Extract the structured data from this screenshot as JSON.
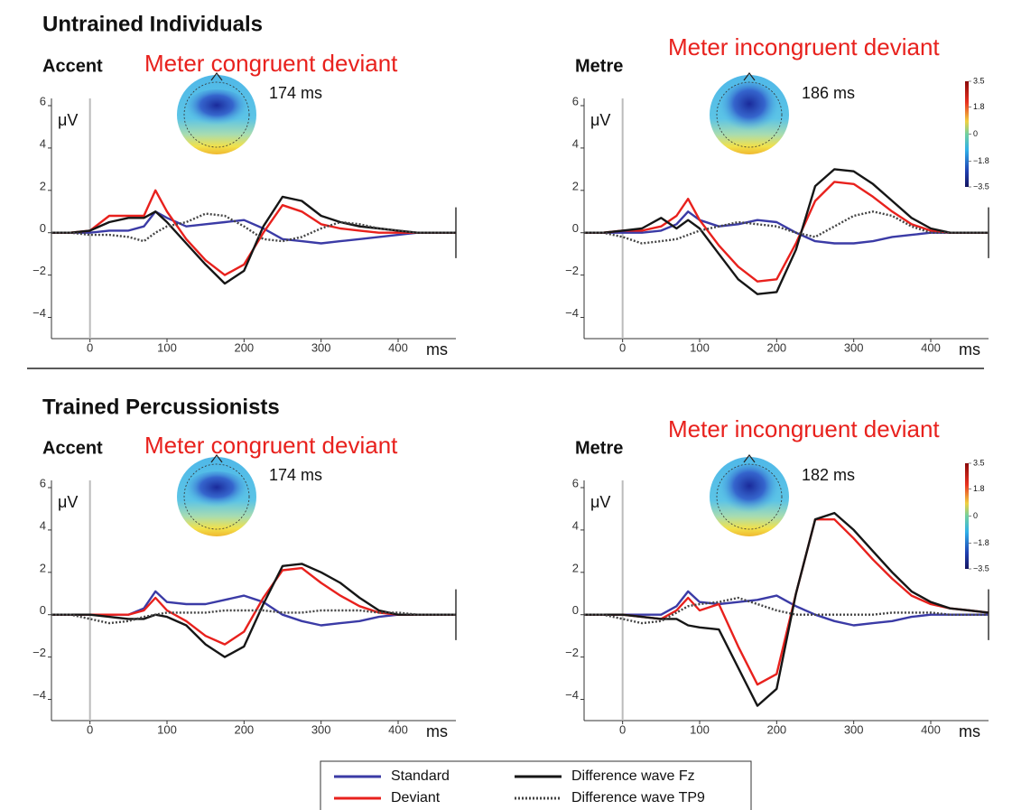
{
  "sections": [
    {
      "title": "Untrained Individuals"
    },
    {
      "title": "Trained Percussionists"
    }
  ],
  "chart_data": [
    {
      "type": "line",
      "label": "Accent",
      "title": "Meter congruent deviant",
      "annotation": "174 ms",
      "ylabel": "μV",
      "xlabel": "ms",
      "x": [
        -50,
        -25,
        0,
        25,
        50,
        70,
        85,
        100,
        125,
        150,
        175,
        200,
        225,
        250,
        275,
        300,
        325,
        350,
        375,
        400,
        425,
        450,
        475
      ],
      "xlim": [
        -50,
        475
      ],
      "ylim": [
        -5,
        6
      ],
      "xticks": [
        0,
        100,
        200,
        300,
        400
      ],
      "yticks": [
        {
          "value": -4,
          "label": "−4"
        },
        {
          "value": -2,
          "label": "−2"
        },
        0,
        2,
        4,
        6
      ],
      "series": [
        {
          "name": "Standard",
          "color": "#3b3ba6",
          "linestyle": "solid",
          "values": [
            0,
            0,
            0,
            0.1,
            0.1,
            0.3,
            1.0,
            0.7,
            0.3,
            0.4,
            0.5,
            0.6,
            0.2,
            -0.3,
            -0.4,
            -0.5,
            -0.4,
            -0.3,
            -0.2,
            -0.1,
            0,
            0,
            0
          ]
        },
        {
          "name": "Deviant",
          "color": "#e8211d",
          "linestyle": "solid",
          "values": [
            0,
            0,
            0.1,
            0.8,
            0.8,
            0.8,
            2.0,
            1.0,
            -0.3,
            -1.3,
            -2.0,
            -1.5,
            0,
            1.3,
            1.0,
            0.4,
            0.2,
            0.1,
            0,
            0,
            0,
            0,
            0
          ]
        },
        {
          "name": "Difference wave Fz",
          "color": "#161616",
          "linestyle": "solid",
          "values": [
            0,
            0,
            0.1,
            0.5,
            0.7,
            0.7,
            1.0,
            0.5,
            -0.5,
            -1.5,
            -2.4,
            -1.8,
            0.3,
            1.7,
            1.5,
            0.8,
            0.5,
            0.3,
            0.2,
            0.1,
            0,
            0,
            0
          ]
        },
        {
          "name": "Difference wave TP9",
          "color": "#444444",
          "linestyle": "dotted",
          "values": [
            0,
            0,
            -0.1,
            -0.1,
            -0.2,
            -0.4,
            0,
            0.3,
            0.5,
            0.9,
            0.8,
            0.3,
            -0.3,
            -0.4,
            -0.2,
            0.2,
            0.5,
            0.4,
            0.2,
            0.1,
            0,
            0,
            0
          ]
        }
      ]
    },
    {
      "type": "line",
      "label": "Metre",
      "title": "Meter incongruent deviant",
      "annotation": "186 ms",
      "ylabel": "μV",
      "xlabel": "ms",
      "x": [
        -50,
        -25,
        0,
        25,
        50,
        70,
        85,
        100,
        125,
        150,
        175,
        200,
        225,
        250,
        275,
        300,
        325,
        350,
        375,
        400,
        425,
        450,
        475
      ],
      "xlim": [
        -50,
        475
      ],
      "ylim": [
        -5,
        6
      ],
      "xticks": [
        0,
        100,
        200,
        300,
        400
      ],
      "yticks": [
        {
          "value": -4,
          "label": "−4"
        },
        {
          "value": -2,
          "label": "−2"
        },
        0,
        2,
        4,
        6
      ],
      "colorbar": {
        "lim": [
          -3.5,
          3.5
        ],
        "ticks": [
          3.5,
          1.8,
          0,
          {
            "value": -1.8,
            "label": "−1.8"
          },
          {
            "value": -3.5,
            "label": "−3.5"
          }
        ]
      },
      "series": [
        {
          "name": "Standard",
          "color": "#3b3ba6",
          "linestyle": "solid",
          "values": [
            0,
            0,
            0,
            0,
            0.1,
            0.4,
            1.0,
            0.6,
            0.3,
            0.4,
            0.6,
            0.5,
            0,
            -0.4,
            -0.5,
            -0.5,
            -0.4,
            -0.2,
            -0.1,
            0,
            0,
            0,
            0
          ]
        },
        {
          "name": "Deviant",
          "color": "#e8211d",
          "linestyle": "solid",
          "values": [
            0,
            0,
            0.1,
            0.1,
            0.3,
            0.8,
            1.6,
            0.6,
            -0.6,
            -1.6,
            -2.3,
            -2.2,
            -0.5,
            1.5,
            2.4,
            2.3,
            1.7,
            1.0,
            0.4,
            0.1,
            0,
            0,
            0
          ]
        },
        {
          "name": "Difference wave Fz",
          "color": "#161616",
          "linestyle": "solid",
          "values": [
            0,
            0,
            0.1,
            0.2,
            0.7,
            0.2,
            0.6,
            0.2,
            -1.0,
            -2.2,
            -2.9,
            -2.8,
            -0.8,
            2.2,
            3.0,
            2.9,
            2.3,
            1.5,
            0.7,
            0.2,
            0,
            0,
            0
          ]
        },
        {
          "name": "Difference wave TP9",
          "color": "#444444",
          "linestyle": "dotted",
          "values": [
            0,
            0,
            -0.2,
            -0.5,
            -0.4,
            -0.3,
            -0.1,
            0.1,
            0.3,
            0.5,
            0.4,
            0.3,
            0,
            -0.2,
            0.3,
            0.8,
            1.0,
            0.8,
            0.3,
            0,
            0,
            0,
            0
          ]
        }
      ]
    },
    {
      "type": "line",
      "label": "Accent",
      "title": "Meter congruent deviant",
      "annotation": "174 ms",
      "ylabel": "μV",
      "xlabel": "ms",
      "x": [
        -50,
        -25,
        0,
        25,
        50,
        70,
        85,
        100,
        125,
        150,
        175,
        200,
        225,
        250,
        275,
        300,
        325,
        350,
        375,
        400,
        425,
        450,
        475
      ],
      "xlim": [
        -50,
        475
      ],
      "ylim": [
        -5,
        6
      ],
      "xticks": [
        0,
        100,
        200,
        300,
        400
      ],
      "yticks": [
        {
          "value": -4,
          "label": "−4"
        },
        {
          "value": -2,
          "label": "−2"
        },
        0,
        2,
        4,
        6
      ],
      "series": [
        {
          "name": "Standard",
          "color": "#3b3ba6",
          "linestyle": "solid",
          "values": [
            0,
            0,
            0,
            0,
            0,
            0.3,
            1.1,
            0.6,
            0.5,
            0.5,
            0.7,
            0.9,
            0.6,
            0,
            -0.3,
            -0.5,
            -0.4,
            -0.3,
            -0.1,
            0,
            0,
            0,
            0
          ]
        },
        {
          "name": "Deviant",
          "color": "#e8211d",
          "linestyle": "solid",
          "values": [
            0,
            0,
            0,
            0,
            0,
            0.2,
            0.8,
            0.2,
            -0.3,
            -1.0,
            -1.4,
            -0.8,
            0.8,
            2.1,
            2.2,
            1.5,
            0.9,
            0.4,
            0.1,
            0,
            0,
            0,
            0
          ]
        },
        {
          "name": "Difference wave Fz",
          "color": "#161616",
          "linestyle": "solid",
          "values": [
            0,
            0,
            0,
            -0.1,
            -0.2,
            -0.2,
            0,
            -0.1,
            -0.5,
            -1.4,
            -2.0,
            -1.5,
            0.5,
            2.3,
            2.4,
            2.0,
            1.5,
            0.8,
            0.2,
            0,
            0,
            0,
            0
          ]
        },
        {
          "name": "Difference wave TP9",
          "color": "#444444",
          "linestyle": "dotted",
          "values": [
            0,
            0,
            -0.2,
            -0.4,
            -0.3,
            -0.1,
            0,
            0.1,
            0.1,
            0.1,
            0.2,
            0.2,
            0.2,
            0.1,
            0.1,
            0.2,
            0.2,
            0.2,
            0.1,
            0.1,
            0,
            0,
            0
          ]
        }
      ]
    },
    {
      "type": "line",
      "label": "Metre",
      "title": "Meter incongruent deviant",
      "annotation": "182 ms",
      "ylabel": "μV",
      "xlabel": "ms",
      "x": [
        -50,
        -25,
        0,
        25,
        50,
        70,
        85,
        100,
        125,
        150,
        175,
        200,
        225,
        250,
        275,
        300,
        325,
        350,
        375,
        400,
        425,
        450,
        475
      ],
      "xlim": [
        -50,
        475
      ],
      "ylim": [
        -5,
        6
      ],
      "xticks": [
        0,
        100,
        200,
        300,
        400
      ],
      "yticks": [
        {
          "value": -4,
          "label": "−4"
        },
        {
          "value": -2,
          "label": "−2"
        },
        0,
        2,
        4,
        6
      ],
      "colorbar": {
        "lim": [
          -3.5,
          3.5
        ],
        "ticks": [
          3.5,
          1.8,
          0,
          {
            "value": -1.8,
            "label": "−1.8"
          },
          {
            "value": -3.5,
            "label": "−3.5"
          }
        ]
      },
      "series": [
        {
          "name": "Standard",
          "color": "#3b3ba6",
          "linestyle": "solid",
          "values": [
            0,
            0,
            0,
            0,
            0,
            0.4,
            1.1,
            0.6,
            0.5,
            0.6,
            0.7,
            0.9,
            0.4,
            0,
            -0.3,
            -0.5,
            -0.4,
            -0.3,
            -0.1,
            0,
            0,
            0,
            0
          ]
        },
        {
          "name": "Deviant",
          "color": "#e8211d",
          "linestyle": "solid",
          "values": [
            0,
            0,
            0,
            -0.1,
            -0.2,
            0.2,
            0.8,
            0.2,
            0.5,
            -1.5,
            -3.3,
            -2.8,
            1.0,
            4.5,
            4.5,
            3.6,
            2.6,
            1.7,
            0.9,
            0.5,
            0.3,
            0.2,
            0.1
          ]
        },
        {
          "name": "Difference wave Fz",
          "color": "#161616",
          "linestyle": "solid",
          "values": [
            0,
            0,
            0,
            -0.1,
            -0.2,
            -0.2,
            -0.5,
            -0.6,
            -0.7,
            -2.5,
            -4.3,
            -3.5,
            1.0,
            4.5,
            4.8,
            4.0,
            3.0,
            2.0,
            1.1,
            0.6,
            0.3,
            0.2,
            0.1
          ]
        },
        {
          "name": "Difference wave TP9",
          "color": "#444444",
          "linestyle": "dotted",
          "values": [
            0,
            0,
            -0.2,
            -0.4,
            -0.3,
            0.1,
            0.4,
            0.5,
            0.6,
            0.8,
            0.5,
            0.2,
            0,
            0,
            0,
            0,
            0,
            0.1,
            0.1,
            0.1,
            0,
            0,
            0
          ]
        }
      ]
    }
  ]
}
